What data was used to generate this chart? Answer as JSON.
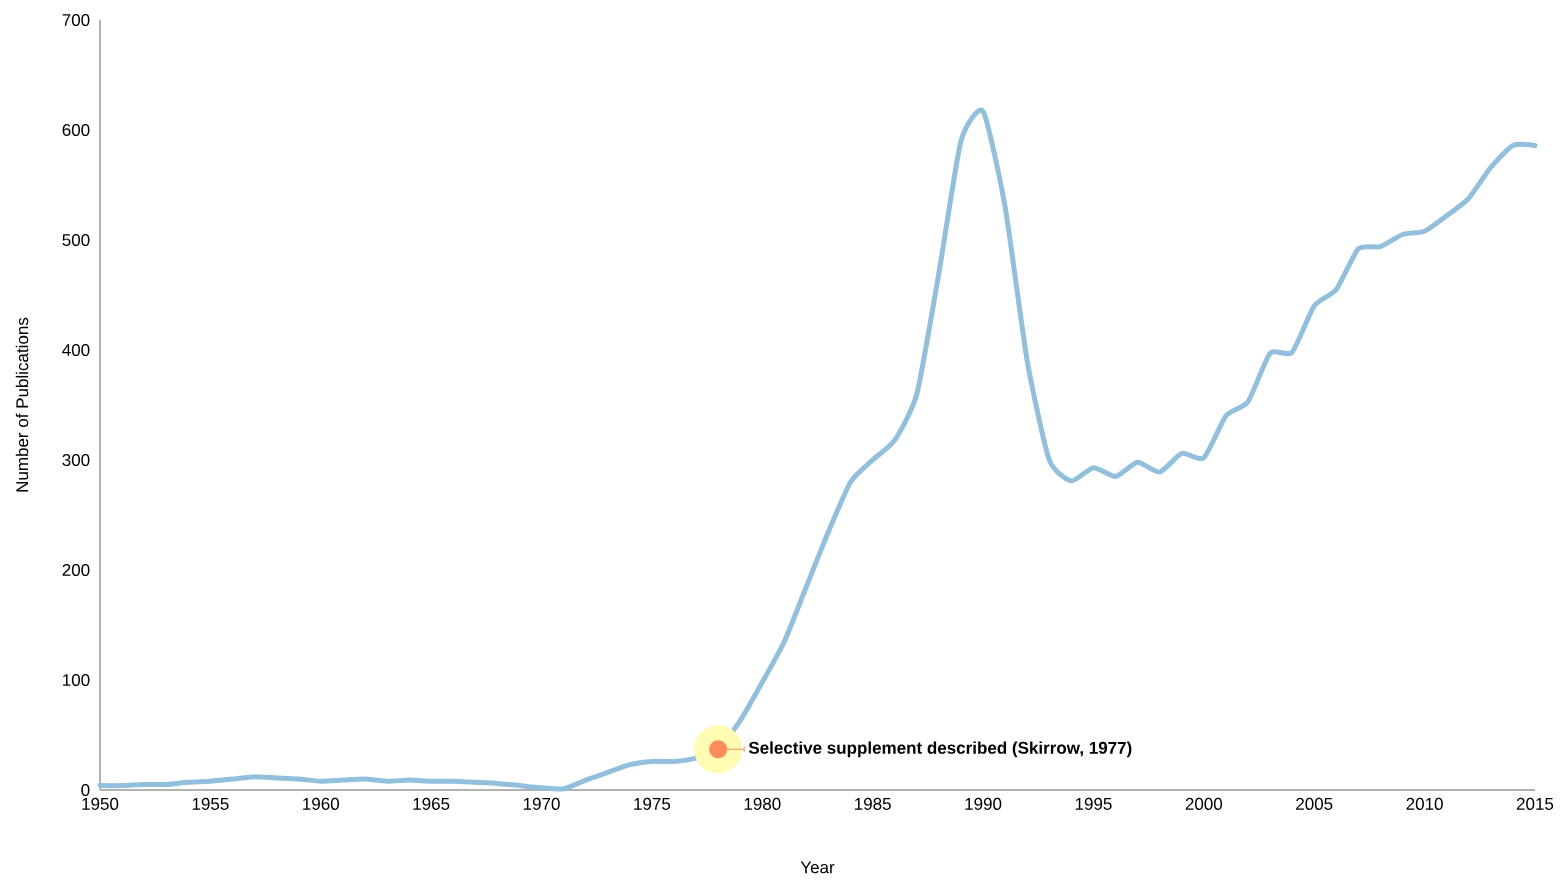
{
  "chart_data": {
    "type": "line",
    "xlabel": "Year",
    "ylabel": "Number of Publications",
    "x": [
      1950,
      1951,
      1952,
      1953,
      1954,
      1955,
      1956,
      1957,
      1958,
      1959,
      1960,
      1961,
      1962,
      1963,
      1964,
      1965,
      1966,
      1967,
      1968,
      1969,
      1970,
      1971,
      1972,
      1973,
      1974,
      1975,
      1976,
      1977,
      1978,
      1979,
      1980,
      1981,
      1982,
      1983,
      1984,
      1985,
      1986,
      1987,
      1988,
      1989,
      1990,
      1991,
      1992,
      1993,
      1994,
      1995,
      1996,
      1997,
      1998,
      1999,
      2000,
      2001,
      2002,
      2003,
      2004,
      2005,
      2006,
      2007,
      2008,
      2009,
      2010,
      2011,
      2012,
      2013,
      2014,
      2015
    ],
    "series": [
      {
        "color": "#92bfdc",
        "values": [
          4,
          4,
          5,
          5,
          7,
          8,
          10,
          12,
          11,
          10,
          8,
          9,
          10,
          8,
          9,
          8,
          8,
          7,
          6,
          4,
          2,
          1,
          9,
          16,
          23,
          26,
          26,
          29,
          37,
          63,
          98,
          135,
          185,
          235,
          280,
          300,
          318,
          360,
          470,
          590,
          617,
          530,
          390,
          300,
          281,
          293,
          285,
          298,
          289,
          306,
          302,
          340,
          353,
          397,
          398,
          440,
          455,
          492,
          494,
          505,
          508,
          522,
          538,
          566,
          586,
          586
        ]
      }
    ],
    "xlim": [
      1950,
      2015
    ],
    "xticks": [
      1950,
      1955,
      1960,
      1965,
      1970,
      1975,
      1980,
      1985,
      1990,
      1995,
      2000,
      2005,
      2010,
      2015
    ],
    "ylim": [
      0,
      700
    ],
    "yticks": [
      0,
      100,
      200,
      300,
      400,
      500,
      600,
      700
    ],
    "grid": false,
    "marker": "none",
    "line_style": "solid",
    "annotations": [
      {
        "text": "Selective supplement described (Skirrow, 1977)",
        "x": 1978,
        "y": 37
      }
    ]
  }
}
